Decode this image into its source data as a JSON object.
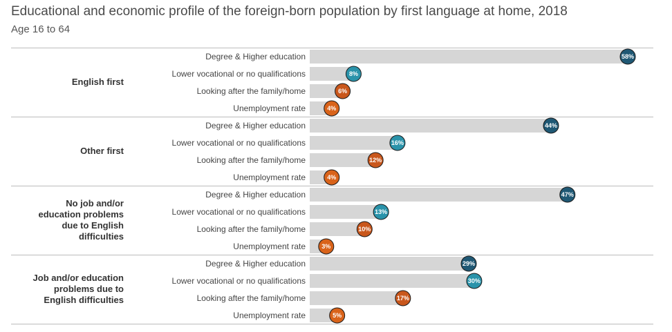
{
  "title": "Educational and economic profile of the foreign-born population by first language at home, 2018",
  "subtitle": "Age 16 to 64",
  "colors": {
    "degree": "#1f5874",
    "vocational": "#2a93aa",
    "family": "#c9571c",
    "unemployment": "#d9631a",
    "bar": "#d6d6d6",
    "divider": "#bbbbbb"
  },
  "chart_data": {
    "type": "bar",
    "orientation": "horizontal",
    "unit": "%",
    "xlim": [
      0,
      58
    ],
    "categories": [
      "Degree & Higher education",
      "Lower vocational or no qualifications",
      "Looking after the family/home",
      "Unemployment rate"
    ],
    "groups": [
      {
        "label": [
          "English first"
        ],
        "values": [
          58,
          8,
          6,
          4
        ]
      },
      {
        "label": [
          "Other first"
        ],
        "values": [
          44,
          16,
          12,
          4
        ]
      },
      {
        "label": [
          "No job and/or",
          "education problems",
          "due to English",
          "difficulties"
        ],
        "values": [
          47,
          13,
          10,
          3
        ]
      },
      {
        "label": [
          "Job and/or education",
          "problems due to",
          "English difficulties"
        ],
        "values": [
          29,
          30,
          17,
          5
        ]
      }
    ]
  }
}
